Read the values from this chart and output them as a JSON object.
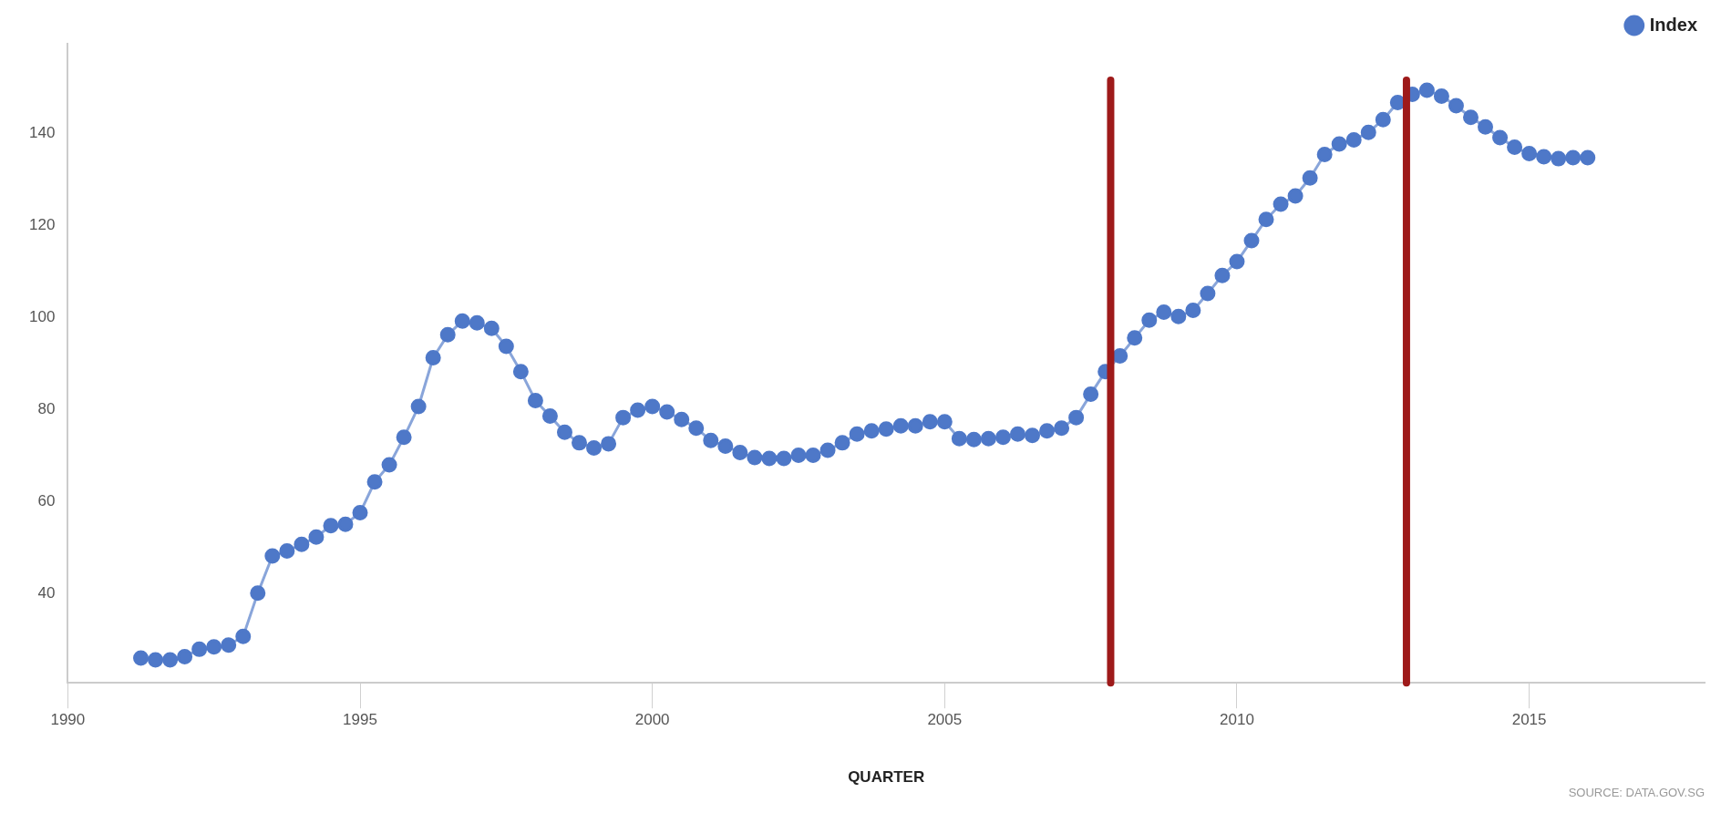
{
  "chart_data": {
    "type": "line",
    "xlabel": "QUARTER",
    "legend": "top right",
    "marker": "circle",
    "line_style": "solid",
    "x": [
      1991.25,
      1991.5,
      1991.75,
      1992,
      1992.25,
      1992.5,
      1992.75,
      1993,
      1993.25,
      1993.5,
      1993.75,
      1994,
      1994.25,
      1994.5,
      1994.75,
      1995,
      1995.25,
      1995.5,
      1995.75,
      1996,
      1996.25,
      1996.5,
      1996.75,
      1997,
      1997.25,
      1997.5,
      1997.75,
      1998,
      1998.25,
      1998.5,
      1998.75,
      1999,
      1999.25,
      1999.5,
      1999.75,
      2000,
      2000.25,
      2000.5,
      2000.75,
      2001,
      2001.25,
      2001.5,
      2001.75,
      2002,
      2002.25,
      2002.5,
      2002.75,
      2003,
      2003.25,
      2003.5,
      2003.75,
      2004,
      2004.25,
      2004.5,
      2004.75,
      2005,
      2005.25,
      2005.5,
      2005.75,
      2006,
      2006.25,
      2006.5,
      2006.75,
      2007,
      2007.25,
      2007.5,
      2007.75,
      2008,
      2008.25,
      2008.5,
      2008.75,
      2009,
      2009.25,
      2009.5,
      2009.75,
      2010,
      2010.25,
      2010.5,
      2010.75,
      2011,
      2011.25,
      2011.5,
      2011.75,
      2012,
      2012.25,
      2012.5,
      2012.75,
      2013,
      2013.25,
      2013.5,
      2013.75,
      2014,
      2014.25,
      2014.5,
      2014.75,
      2015,
      2015.25,
      2015.5,
      2015.75,
      2016
    ],
    "series": [
      {
        "name": "Index",
        "color": "#4e78c8",
        "values": [
          25.9,
          25.5,
          25.5,
          26.2,
          27.8,
          28.3,
          28.7,
          30.6,
          40,
          48.1,
          49.2,
          50.6,
          52.2,
          54.7,
          55.0,
          57.5,
          64.2,
          67.9,
          73.9,
          80.6,
          91.2,
          96.2,
          99.2,
          98.8,
          97.6,
          93.7,
          88.2,
          81.9,
          78.5,
          75.0,
          72.7,
          71.6,
          72.5,
          78.2,
          79.8,
          80.6,
          79.4,
          77.8,
          75.9,
          73.2,
          72.0,
          70.6,
          69.5,
          69.3,
          69.3,
          70.0,
          70.0,
          71.1,
          72.7,
          74.6,
          75.3,
          75.7,
          76.4,
          76.4,
          77.3,
          77.3,
          73.6,
          73.4,
          73.6,
          73.9,
          74.6,
          74.3,
          75.3,
          75.9,
          78.2,
          83.3,
          88.2,
          91.6,
          95.5,
          99.4,
          101.1,
          100.2,
          101.5,
          105.2,
          109.1,
          112.1,
          116.7,
          121.3,
          124.6,
          126.4,
          130.3,
          135.4,
          137.7,
          138.6,
          140.2,
          143.0,
          146.7,
          148.5,
          149.4,
          148.1,
          146.0,
          143.5,
          141.4,
          139.1,
          137.0,
          135.6,
          134.9,
          134.5,
          134.7,
          134.7
        ]
      }
    ],
    "xlim": [
      1990,
      2018
    ],
    "xticks": [
      1990,
      1995,
      2000,
      2005,
      2010,
      2015
    ],
    "ylim": [
      20.5,
      159.5
    ],
    "yticks": [
      40,
      60,
      80,
      100,
      120,
      140
    ],
    "ref_lines": [
      {
        "axis": "x",
        "value": 2007.84,
        "color": "#9e1a1a"
      },
      {
        "axis": "x",
        "value": 2012.9,
        "color": "#9e1a1a"
      }
    ],
    "annotations": [
      "SOURCE: DATA.GOV.SG"
    ]
  }
}
